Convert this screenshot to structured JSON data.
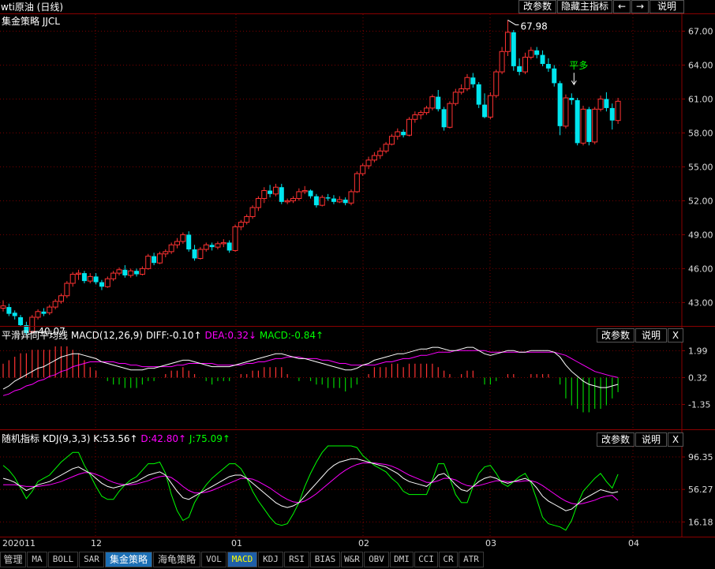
{
  "window": {
    "title": "wti原油 (日线)",
    "buttons": [
      "改参数",
      "隐藏主指标",
      "←",
      "→",
      "说明"
    ]
  },
  "main_pane": {
    "indicator_label": "集金策略 JJCL",
    "high_label": "67.98",
    "low_label": "40.07",
    "signal_label": "平多",
    "y_ticks": [
      "67.00",
      "64.00",
      "61.00",
      "58.00",
      "55.00",
      "52.00",
      "49.00",
      "46.00",
      "43.00"
    ]
  },
  "macd_pane": {
    "name": "平滑异同平均线",
    "params": "MACD(12,26,9)",
    "diff": "DIFF:-0.10↑",
    "dea": "DEA:0.32↓",
    "macd": "MACD:-0.84↑",
    "y_ticks": [
      "1.99",
      "0.32",
      "-1.35"
    ],
    "buttons": [
      "改参数",
      "说明",
      "X"
    ]
  },
  "kdj_pane": {
    "name": "随机指标",
    "params": "KDJ(9,3,3)",
    "k": "K:53.56↑",
    "d": "D:42.80↑",
    "j": "J:75.09↑",
    "y_ticks": [
      "96.35",
      "56.27",
      "16.18"
    ],
    "buttons": [
      "改参数",
      "说明",
      "X"
    ]
  },
  "x_axis": {
    "labels": [
      "202011",
      "12",
      "01",
      "02",
      "03",
      "04"
    ]
  },
  "tabs": [
    "管理",
    "MA",
    "BOLL",
    "SAR",
    "集金策略",
    "海龟策略",
    "VOL",
    "MACD",
    "KDJ",
    "RSI",
    "BIAS",
    "W&R",
    "OBV",
    "DMI",
    "CCI",
    "CR",
    "ATR"
  ],
  "active_tabs": [
    "集金策略",
    "MACD"
  ],
  "colors": {
    "up_candle": "#ff3232",
    "down_candle": "#00e5ee",
    "macd_diff": "#ffffff",
    "macd_dea": "#ff00ff",
    "macd_hist_pos": "#ff3232",
    "macd_hist_neg": "#00d000",
    "kdj_k": "#ffffff",
    "kdj_d": "#ff00ff",
    "kdj_j": "#00ff00",
    "grid": "#7a0000"
  },
  "chart_data": {
    "type": "candlestick",
    "title": "wti原油 (日线)",
    "x_labels": [
      "202011",
      "12",
      "01",
      "02",
      "03",
      "04"
    ],
    "price_range": [
      41.0,
      68.5
    ],
    "candles": [
      [
        42.5,
        43.2,
        42.2,
        42.7
      ],
      [
        42.6,
        42.9,
        41.8,
        42.0
      ],
      [
        42.1,
        42.3,
        41.5,
        41.8
      ],
      [
        41.7,
        41.9,
        40.9,
        41.0
      ],
      [
        41.0,
        41.3,
        40.1,
        40.3
      ],
      [
        40.4,
        41.9,
        40.3,
        41.7
      ],
      [
        41.7,
        42.4,
        41.5,
        42.2
      ],
      [
        42.2,
        42.5,
        41.8,
        42.0
      ],
      [
        42.1,
        42.8,
        41.9,
        42.6
      ],
      [
        42.6,
        43.3,
        42.4,
        43.1
      ],
      [
        43.1,
        43.8,
        42.9,
        43.6
      ],
      [
        43.6,
        44.9,
        43.4,
        44.7
      ],
      [
        44.7,
        45.7,
        44.4,
        45.5
      ],
      [
        45.5,
        45.9,
        45.0,
        45.6
      ],
      [
        45.6,
        45.8,
        44.7,
        44.9
      ],
      [
        44.9,
        45.6,
        44.7,
        45.3
      ],
      [
        45.3,
        45.6,
        44.6,
        44.8
      ],
      [
        44.8,
        45.0,
        44.1,
        44.4
      ],
      [
        44.4,
        45.3,
        44.3,
        45.1
      ],
      [
        45.1,
        45.8,
        44.9,
        45.6
      ],
      [
        45.6,
        46.1,
        45.4,
        45.9
      ],
      [
        45.9,
        46.3,
        45.2,
        45.4
      ],
      [
        45.4,
        46.0,
        45.2,
        45.8
      ],
      [
        45.8,
        46.0,
        45.3,
        45.5
      ],
      [
        45.5,
        46.2,
        45.4,
        46.0
      ],
      [
        46.0,
        47.3,
        45.9,
        47.1
      ],
      [
        47.1,
        47.4,
        46.3,
        46.5
      ],
      [
        46.5,
        47.5,
        46.4,
        47.3
      ],
      [
        47.3,
        47.7,
        47.0,
        47.5
      ],
      [
        47.5,
        48.3,
        47.3,
        48.1
      ],
      [
        48.1,
        48.7,
        47.8,
        48.4
      ],
      [
        48.4,
        49.2,
        48.2,
        49.0
      ],
      [
        49.0,
        49.3,
        47.5,
        47.7
      ],
      [
        47.7,
        48.1,
        46.7,
        46.9
      ],
      [
        46.9,
        47.9,
        46.8,
        47.7
      ],
      [
        47.7,
        48.3,
        47.5,
        48.1
      ],
      [
        48.1,
        48.3,
        47.6,
        47.9
      ],
      [
        47.9,
        48.4,
        47.7,
        48.2
      ],
      [
        48.2,
        48.6,
        47.9,
        48.3
      ],
      [
        48.3,
        48.5,
        47.4,
        47.6
      ],
      [
        47.6,
        49.9,
        47.5,
        49.7
      ],
      [
        49.7,
        50.3,
        49.4,
        50.1
      ],
      [
        50.1,
        50.8,
        49.9,
        50.6
      ],
      [
        50.6,
        51.6,
        50.4,
        51.4
      ],
      [
        51.4,
        52.4,
        51.1,
        52.2
      ],
      [
        52.2,
        53.2,
        51.8,
        52.9
      ],
      [
        52.9,
        53.4,
        52.3,
        52.6
      ],
      [
        52.6,
        53.5,
        52.4,
        53.2
      ],
      [
        53.2,
        53.5,
        51.7,
        51.9
      ],
      [
        51.9,
        52.2,
        51.7,
        52.0
      ],
      [
        52.0,
        52.4,
        51.8,
        52.2
      ],
      [
        52.2,
        53.1,
        52.0,
        52.8
      ],
      [
        52.8,
        53.3,
        52.6,
        52.9
      ],
      [
        52.9,
        53.0,
        52.2,
        52.4
      ],
      [
        52.4,
        52.6,
        51.4,
        51.6
      ],
      [
        51.6,
        52.5,
        51.5,
        52.3
      ],
      [
        52.3,
        52.6,
        52.0,
        52.2
      ],
      [
        52.2,
        52.5,
        51.7,
        51.9
      ],
      [
        51.9,
        52.4,
        51.8,
        52.1
      ],
      [
        52.1,
        52.3,
        51.6,
        51.8
      ],
      [
        51.8,
        53.0,
        51.6,
        52.8
      ],
      [
        52.8,
        54.6,
        52.7,
        54.4
      ],
      [
        54.4,
        55.3,
        54.2,
        55.1
      ],
      [
        55.1,
        55.9,
        54.8,
        55.6
      ],
      [
        55.6,
        56.3,
        55.4,
        56.0
      ],
      [
        56.0,
        56.7,
        55.7,
        56.4
      ],
      [
        56.4,
        57.2,
        56.2,
        57.0
      ],
      [
        57.0,
        57.9,
        56.9,
        57.7
      ],
      [
        57.7,
        58.4,
        57.4,
        58.1
      ],
      [
        58.1,
        58.3,
        57.6,
        57.8
      ],
      [
        57.8,
        59.4,
        57.7,
        59.2
      ],
      [
        59.2,
        59.9,
        58.9,
        59.6
      ],
      [
        59.6,
        60.0,
        59.2,
        59.8
      ],
      [
        59.8,
        60.4,
        59.6,
        60.2
      ],
      [
        60.2,
        61.4,
        60.0,
        61.2
      ],
      [
        61.2,
        61.8,
        59.9,
        60.1
      ],
      [
        60.1,
        60.3,
        58.2,
        58.5
      ],
      [
        58.5,
        60.8,
        58.4,
        60.6
      ],
      [
        60.6,
        61.9,
        60.4,
        61.6
      ],
      [
        61.6,
        62.3,
        61.4,
        61.9
      ],
      [
        61.9,
        63.2,
        61.7,
        62.9
      ],
      [
        62.9,
        63.3,
        62.0,
        62.3
      ],
      [
        62.3,
        62.5,
        60.2,
        60.5
      ],
      [
        60.5,
        61.5,
        59.3,
        59.4
      ],
      [
        59.4,
        61.6,
        59.2,
        61.3
      ],
      [
        61.3,
        63.6,
        61.1,
        63.4
      ],
      [
        63.4,
        65.6,
        63.2,
        65.2
      ],
      [
        65.2,
        67.98,
        64.8,
        66.9
      ],
      [
        66.9,
        67.1,
        63.5,
        63.9
      ],
      [
        63.9,
        64.6,
        63.1,
        63.4
      ],
      [
        63.4,
        65.1,
        63.2,
        64.7
      ],
      [
        64.7,
        65.6,
        64.5,
        65.3
      ],
      [
        65.3,
        65.6,
        64.6,
        64.9
      ],
      [
        64.9,
        65.3,
        63.9,
        64.1
      ],
      [
        64.1,
        64.6,
        63.4,
        63.7
      ],
      [
        63.7,
        64.0,
        62.1,
        62.4
      ],
      [
        62.4,
        62.6,
        57.8,
        58.6
      ],
      [
        58.6,
        61.4,
        58.4,
        61.1
      ],
      [
        61.1,
        61.5,
        60.5,
        60.9
      ],
      [
        60.9,
        61.1,
        56.9,
        57.1
      ],
      [
        57.1,
        60.4,
        56.9,
        60.1
      ],
      [
        60.1,
        60.3,
        56.9,
        57.2
      ],
      [
        57.2,
        60.3,
        57.0,
        60.1
      ],
      [
        60.1,
        61.3,
        59.9,
        61.0
      ],
      [
        61.0,
        61.6,
        59.9,
        60.2
      ],
      [
        60.2,
        60.6,
        58.3,
        59.1
      ],
      [
        59.1,
        61.1,
        58.8,
        60.8
      ]
    ],
    "macd": {
      "range": [
        -2.8,
        2.6
      ],
      "diff": [
        -0.4,
        -0.2,
        0.1,
        0.3,
        0.5,
        0.7,
        0.9,
        1.0,
        1.2,
        1.4,
        1.6,
        1.7,
        1.8,
        1.8,
        1.7,
        1.6,
        1.5,
        1.3,
        1.2,
        1.1,
        1.0,
        0.9,
        0.8,
        0.8,
        0.8,
        0.9,
        0.9,
        1.0,
        1.1,
        1.2,
        1.3,
        1.4,
        1.4,
        1.3,
        1.2,
        1.1,
        1.0,
        1.0,
        1.0,
        1.0,
        1.1,
        1.2,
        1.3,
        1.4,
        1.5,
        1.6,
        1.7,
        1.8,
        1.8,
        1.7,
        1.6,
        1.5,
        1.5,
        1.4,
        1.3,
        1.2,
        1.1,
        1.0,
        0.9,
        0.8,
        0.8,
        0.9,
        1.1,
        1.2,
        1.4,
        1.5,
        1.6,
        1.7,
        1.8,
        1.8,
        1.9,
        2.0,
        2.1,
        2.1,
        2.2,
        2.2,
        2.1,
        2.0,
        2.0,
        2.1,
        2.2,
        2.2,
        2.0,
        1.8,
        1.7,
        1.8,
        1.9,
        2.0,
        2.0,
        1.9,
        1.9,
        2.0,
        2.0,
        2.0,
        2.0,
        1.9,
        1.6,
        1.1,
        0.7,
        0.4,
        0.1,
        -0.1,
        -0.2,
        -0.3,
        -0.3,
        -0.2,
        -0.1
      ],
      "dea": [
        -0.8,
        -0.7,
        -0.5,
        -0.4,
        -0.2,
        -0.1,
        0.1,
        0.2,
        0.4,
        0.5,
        0.7,
        0.8,
        1.0,
        1.1,
        1.2,
        1.3,
        1.3,
        1.3,
        1.3,
        1.3,
        1.2,
        1.2,
        1.1,
        1.1,
        1.0,
        1.0,
        1.0,
        1.0,
        1.0,
        1.0,
        1.1,
        1.1,
        1.2,
        1.2,
        1.2,
        1.2,
        1.2,
        1.1,
        1.1,
        1.1,
        1.1,
        1.1,
        1.2,
        1.2,
        1.3,
        1.3,
        1.4,
        1.5,
        1.5,
        1.6,
        1.6,
        1.6,
        1.5,
        1.5,
        1.5,
        1.4,
        1.4,
        1.3,
        1.2,
        1.2,
        1.1,
        1.1,
        1.1,
        1.1,
        1.1,
        1.2,
        1.3,
        1.3,
        1.4,
        1.5,
        1.5,
        1.6,
        1.7,
        1.7,
        1.8,
        1.9,
        1.9,
        1.9,
        2.0,
        2.0,
        2.0,
        2.0,
        2.0,
        2.0,
        1.9,
        1.9,
        1.9,
        1.9,
        1.9,
        1.9,
        1.9,
        1.9,
        1.9,
        1.9,
        1.9,
        1.9,
        1.8,
        1.7,
        1.5,
        1.3,
        1.1,
        0.9,
        0.7,
        0.6,
        0.5,
        0.4,
        0.32
      ]
    },
    "kdj": {
      "range": [
        0,
        110
      ],
      "k": [
        70,
        68,
        65,
        60,
        55,
        58,
        62,
        64,
        66,
        70,
        74,
        78,
        82,
        84,
        80,
        76,
        70,
        64,
        60,
        58,
        60,
        62,
        64,
        66,
        70,
        74,
        76,
        78,
        74,
        64,
        54,
        46,
        44,
        48,
        52,
        56,
        60,
        64,
        68,
        72,
        74,
        74,
        70,
        64,
        58,
        52,
        46,
        40,
        36,
        34,
        36,
        40,
        48,
        56,
        64,
        72,
        80,
        86,
        90,
        92,
        94,
        94,
        92,
        90,
        88,
        86,
        84,
        80,
        76,
        70,
        66,
        64,
        62,
        60,
        66,
        74,
        76,
        70,
        62,
        56,
        54,
        60,
        66,
        70,
        72,
        70,
        66,
        64,
        66,
        68,
        70,
        66,
        58,
        48,
        42,
        38,
        34,
        30,
        32,
        38,
        44,
        48,
        52,
        56,
        54,
        52,
        53.56
      ],
      "d": [
        62,
        62,
        62,
        61,
        60,
        60,
        60,
        61,
        62,
        64,
        66,
        69,
        72,
        75,
        77,
        77,
        75,
        72,
        68,
        65,
        63,
        62,
        62,
        63,
        65,
        67,
        70,
        72,
        73,
        71,
        66,
        60,
        55,
        52,
        52,
        53,
        55,
        58,
        61,
        64,
        67,
        70,
        70,
        69,
        66,
        62,
        58,
        53,
        48,
        44,
        41,
        40,
        42,
        46,
        51,
        57,
        63,
        69,
        75,
        80,
        84,
        87,
        89,
        89,
        89,
        88,
        87,
        85,
        82,
        78,
        74,
        71,
        68,
        65,
        65,
        67,
        70,
        70,
        68,
        64,
        61,
        60,
        61,
        63,
        65,
        67,
        67,
        66,
        66,
        66,
        67,
        67,
        65,
        61,
        56,
        51,
        46,
        42,
        39,
        38,
        39,
        41,
        43,
        46,
        48,
        49,
        42.8
      ],
      "j": [
        86,
        80,
        71,
        58,
        45,
        54,
        66,
        70,
        74,
        82,
        90,
        96,
        102,
        102,
        86,
        74,
        60,
        48,
        44,
        44,
        54,
        62,
        68,
        72,
        80,
        88,
        88,
        90,
        76,
        50,
        30,
        18,
        22,
        40,
        52,
        62,
        70,
        76,
        82,
        88,
        88,
        82,
        70,
        54,
        42,
        32,
        22,
        14,
        12,
        14,
        26,
        40,
        60,
        76,
        90,
        102,
        110,
        110,
        110,
        110,
        110,
        108,
        98,
        92,
        86,
        82,
        78,
        70,
        64,
        54,
        50,
        50,
        50,
        50,
        68,
        88,
        88,
        70,
        50,
        40,
        40,
        60,
        76,
        84,
        86,
        76,
        64,
        60,
        66,
        72,
        76,
        64,
        44,
        22,
        14,
        12,
        10,
        6,
        18,
        38,
        54,
        62,
        70,
        76,
        66,
        58,
        75.09
      ]
    }
  }
}
